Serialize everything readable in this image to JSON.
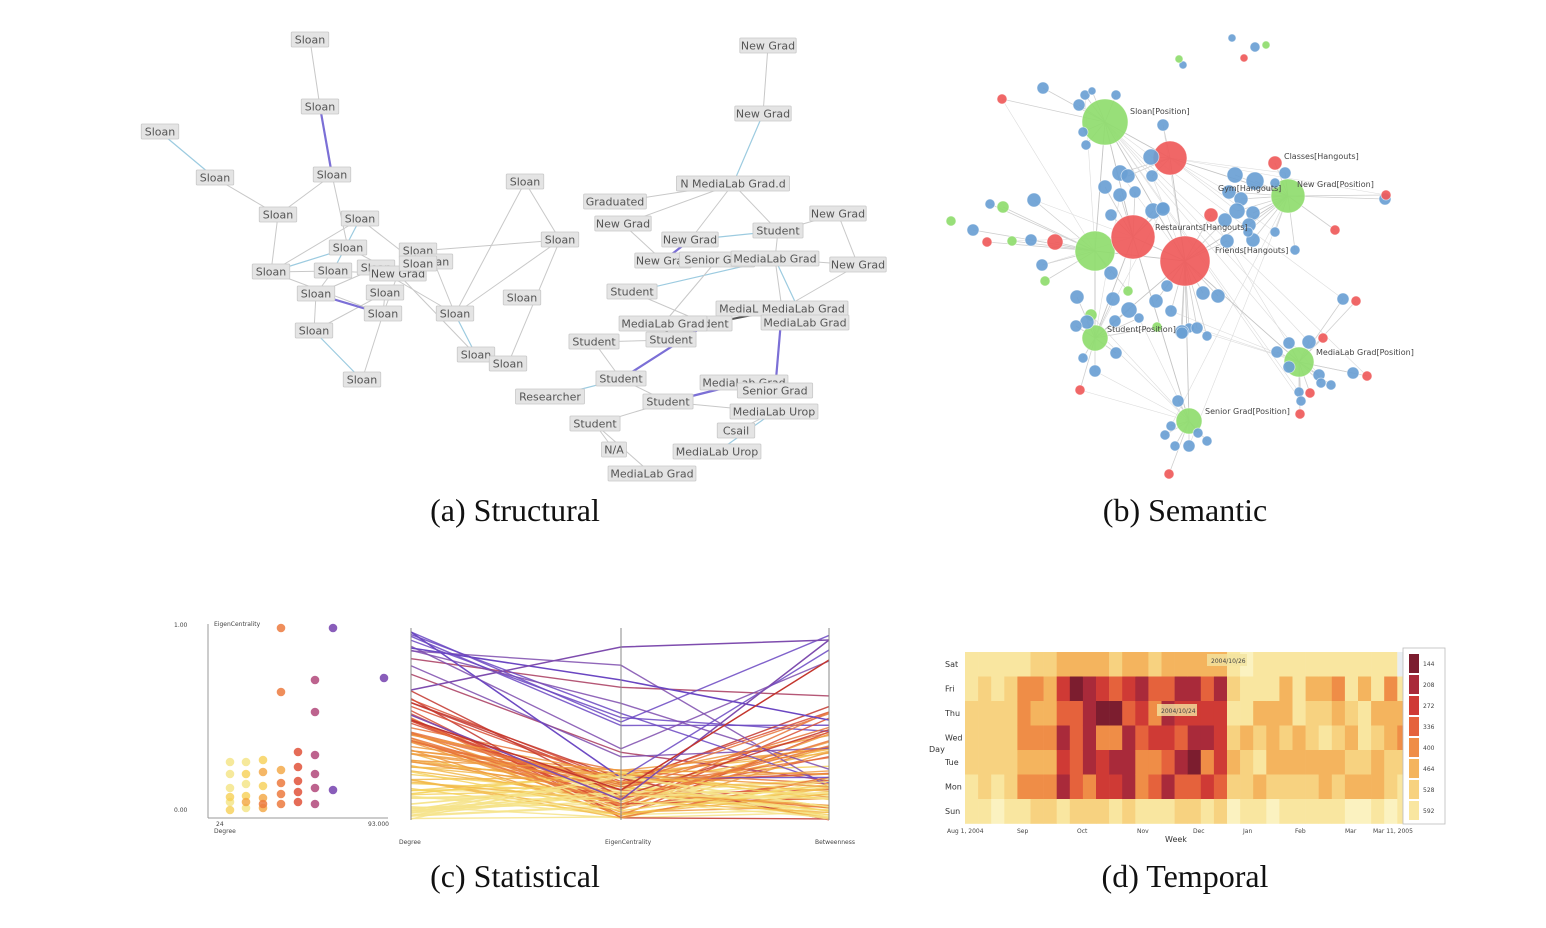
{
  "captions": {
    "a": "(a) Structural",
    "b": "(b) Semantic",
    "c": "(c) Statistical",
    "d": "(d) Temporal"
  },
  "structural": {
    "nodes": [
      "Sloan",
      "Sloan",
      "Sloan",
      "Sloan",
      "Sloan",
      "Sloan",
      "Sloan",
      "Sloan",
      "Sloan",
      "Sloan",
      "Sloan",
      "Sloan",
      "New Grad",
      "Sloan",
      "Sloan",
      "Sloan",
      "Sloan",
      "Sloan",
      "Sloan",
      "Sloan",
      "Sloan",
      "Sloan",
      "Sloan",
      "Sloan",
      "Sloan",
      "Sloan",
      "New Grad",
      "New Grad",
      "Graduated",
      "N MediaLab Grad.d",
      "New Grad",
      "New Grad",
      "New Grad",
      "Student",
      "New Grad",
      "Senior Grad",
      "MediaLab Grad",
      "New Grad",
      "Student",
      "MediaL MediaLab Grad",
      "MediaLab Grad",
      "Student",
      "MediaLab Grad",
      "Student",
      "Student",
      "Student",
      "Student",
      "MediaLab Grad",
      "Senior Grad",
      "Researcher",
      "Student",
      "MediaLab Urop",
      "Csail",
      "N/A",
      "MediaLab Urop",
      "MediaLab Grad"
    ]
  },
  "semantic": {
    "labels": [
      "Sloan[Position]",
      "Classes[Hangouts]",
      "Gym[Hangouts]",
      "New Grad[Position]",
      "Restaurants[Hangouts]",
      "Friends[Hangouts]",
      "Student[Position]",
      "MediaLab Grad[Position]",
      "Senior Grad[Position]"
    ],
    "colors": {
      "person": "#6a9fd4",
      "position": "#8fdc6e",
      "hangout": "#ef5a5a"
    }
  },
  "statistical": {
    "scatter": {
      "ylabel": "EigenCentrality",
      "xlabel": "Degree",
      "ytop": "1.00",
      "ybottom": "0.00",
      "xleft": "24",
      "xright": "93.000"
    },
    "parallel_axes": [
      "Degree",
      "EigenCentrality",
      "Betweenness"
    ]
  },
  "temporal": {
    "days": [
      "Sat",
      "Fri",
      "Thu",
      "Wed",
      "Tue",
      "Mon",
      "Sun"
    ],
    "ylabel": "Day",
    "xticks": [
      "Aug 1, 2004",
      "Sep",
      "Oct",
      "Nov",
      "Dec",
      "Jan",
      "Feb",
      "Mar",
      "Mar 11, 2005"
    ],
    "xlabel": "Week",
    "annotations": [
      "2004/10/26",
      "2004/10/24"
    ],
    "legend": [
      "144",
      "208",
      "272",
      "336",
      "400",
      "464",
      "528",
      "592"
    ]
  }
}
